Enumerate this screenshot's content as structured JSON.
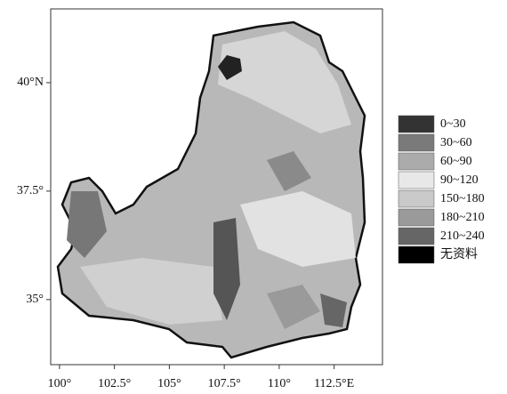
{
  "map": {
    "xlim": [
      99.6,
      114.7
    ],
    "ylim": [
      33.5,
      41.7
    ],
    "xticks": [
      {
        "value": 100,
        "label": "100°"
      },
      {
        "value": 102.5,
        "label": "102.5°"
      },
      {
        "value": 105,
        "label": "105°"
      },
      {
        "value": 107.5,
        "label": "107.5°"
      },
      {
        "value": 110,
        "label": "110°"
      },
      {
        "value": 112.5,
        "label": "112.5°E"
      }
    ],
    "yticks": [
      {
        "value": 40,
        "label": "40°N"
      },
      {
        "value": 37.5,
        "label": "37.5°"
      },
      {
        "value": 35,
        "label": "35°"
      }
    ],
    "legend": [
      {
        "label": "0~30",
        "color": "#333333"
      },
      {
        "label": "30~60",
        "color": "#7a7a7a"
      },
      {
        "label": "60~90",
        "color": "#ababab"
      },
      {
        "label": "90~120",
        "color": "#e8e8e8"
      },
      {
        "label": "150~180",
        "color": "#c9c9c9"
      },
      {
        "label": "180~210",
        "color": "#9a9a9a"
      },
      {
        "label": "210~240",
        "color": "#666666"
      },
      {
        "label": "无资料",
        "color": "#000000"
      }
    ]
  }
}
